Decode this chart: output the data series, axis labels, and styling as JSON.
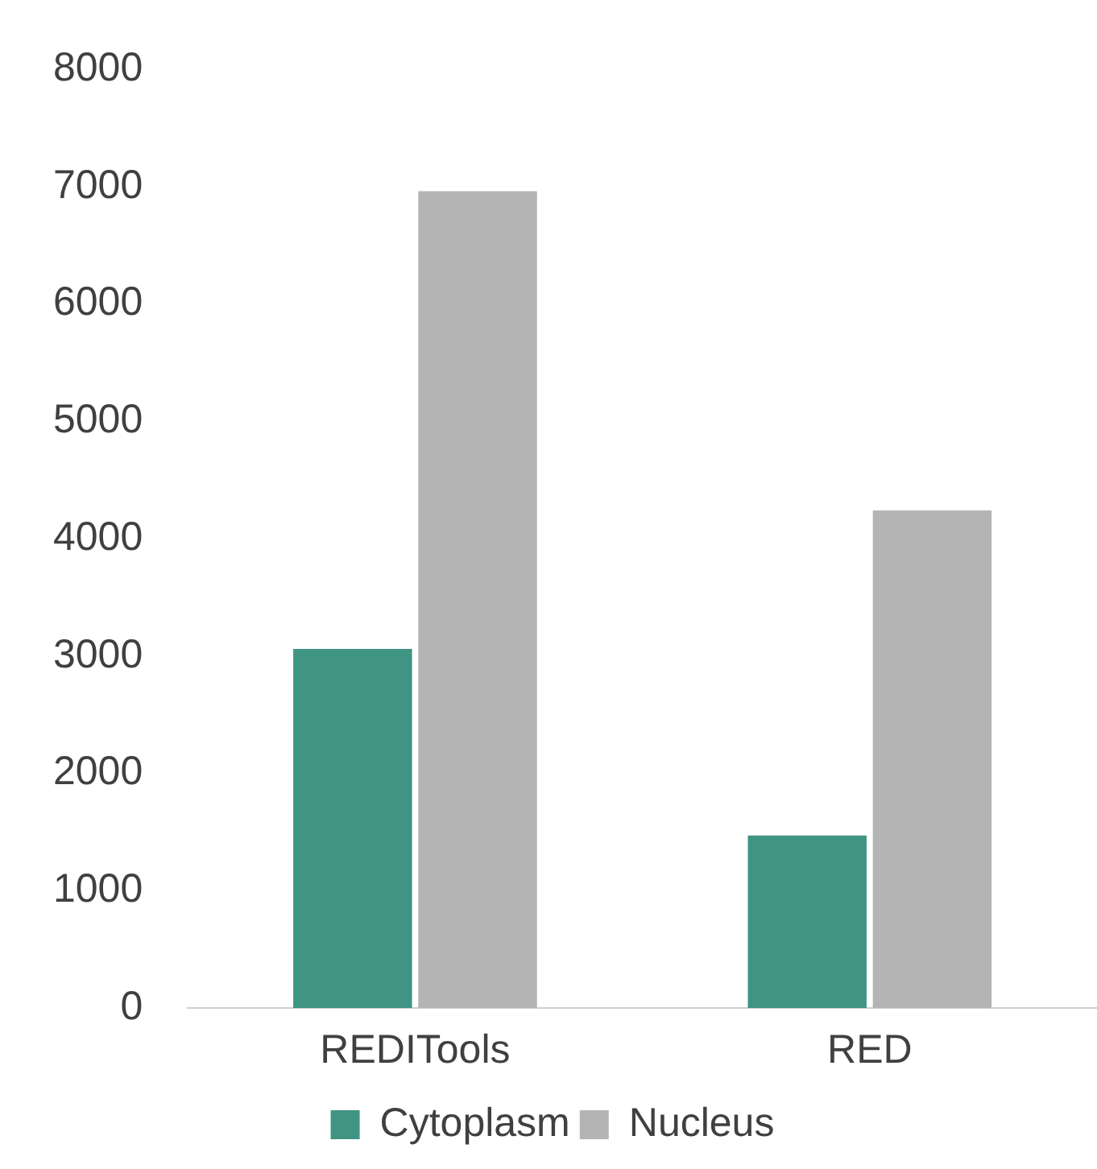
{
  "chart_data": {
    "type": "bar",
    "categories": [
      "REDITools",
      "RED"
    ],
    "series": [
      {
        "name": "Cytoplasm",
        "color": "#409484",
        "values": [
          3060,
          1470
        ]
      },
      {
        "name": "Nucleus",
        "color": "#b4b4b4",
        "values": [
          6960,
          4240
        ]
      }
    ],
    "ylim": [
      0,
      8000
    ],
    "yticks": [
      0,
      1000,
      2000,
      3000,
      4000,
      5000,
      6000,
      7000,
      8000
    ],
    "grid": false,
    "legend": "bottom"
  }
}
